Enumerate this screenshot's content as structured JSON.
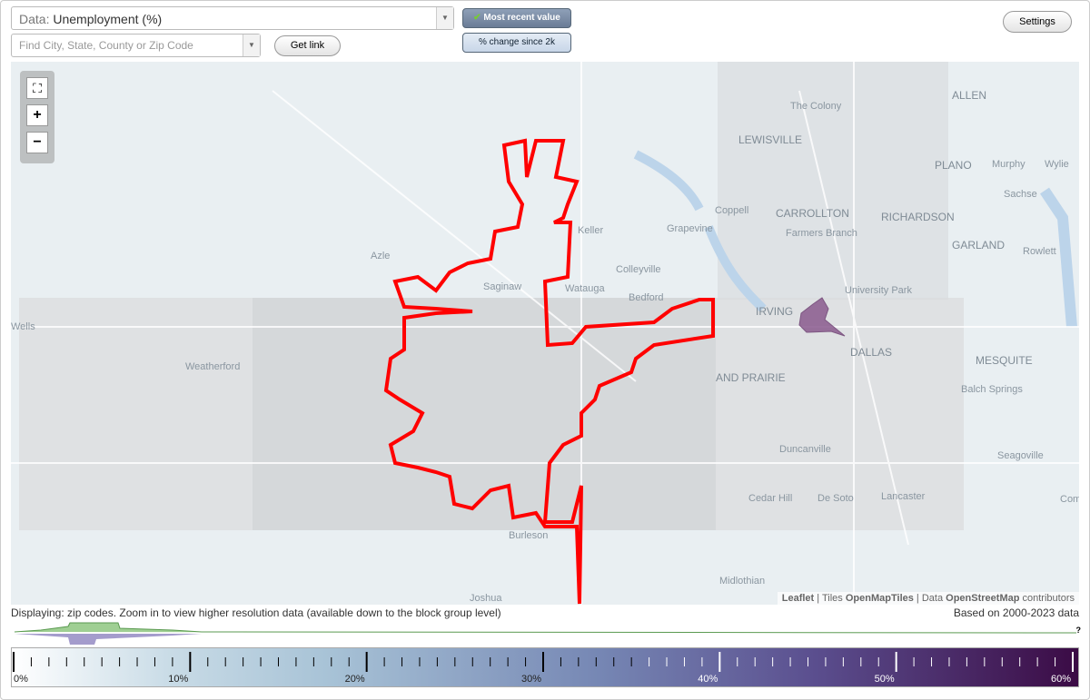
{
  "header": {
    "data_label": "Data:",
    "data_value": "Unemployment (%)",
    "search_placeholder": "Find City, State, County or Zip Code",
    "get_link": "Get link",
    "toggle_recent": "Most recent value",
    "toggle_change": "% change since 2k",
    "settings": "Settings"
  },
  "map": {
    "labels": [
      "ALLEN",
      "The Colony",
      "LEWISVILLE",
      "PLANO",
      "Murphy",
      "Wylie",
      "Sachse",
      "Coppell",
      "CARROLLTON",
      "RICHARDSON",
      "Farmers Branch",
      "GARLAND",
      "Rowlett",
      "Azle",
      "Keller",
      "Grapevine",
      "Colleyville",
      "Saginaw",
      "Watauga",
      "Bedford",
      "University Park",
      "IRVING",
      "DALLAS",
      "Wells",
      "Weatherford",
      "AND PRAIRIE",
      "MESQUITE",
      "Balch Springs",
      "Duncanville",
      "Seagoville",
      "Cedar Hill",
      "De Soto",
      "Lancaster",
      "Combine",
      "Burleson",
      "Midlothian",
      "Joshua"
    ],
    "attribution": {
      "leaflet": "Leaflet",
      "separator": "|",
      "tiles_prefix": "Tiles",
      "tiles": "OpenMapTiles",
      "data_prefix": "Data",
      "data": "OpenStreetMap",
      "suffix": "contributors"
    }
  },
  "footer": {
    "displaying": "Displaying: zip codes. Zoom in to view higher resolution data (available down to the block group level)",
    "based_on": "Based on 2000-2023 data",
    "help": "?"
  },
  "legend": {
    "tick_labels": [
      "0%",
      "10%",
      "20%",
      "30%",
      "40%",
      "50%",
      "60%"
    ]
  }
}
